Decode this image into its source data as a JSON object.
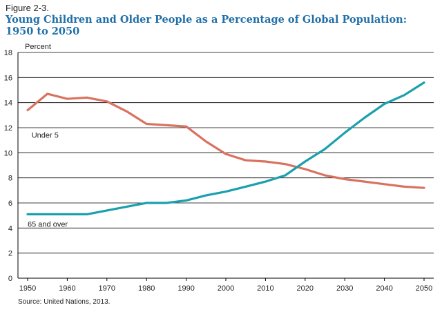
{
  "figure_label": "Figure 2-3.",
  "title_line1": "Young Children and Older People as a Percentage of Global Population:",
  "title_line2": "1950 to 2050",
  "source": "Source: United Nations, 2013.",
  "colors": {
    "title": "#1f6fa8",
    "under5": "#d9725f",
    "over65": "#1aa0ad",
    "grid": "#000000"
  },
  "chart_data": {
    "type": "line",
    "ylabel": "Percent",
    "xlabel": "",
    "ylim": [
      0,
      18
    ],
    "xlim": [
      1950,
      2050
    ],
    "yticks": [
      0,
      2,
      4,
      6,
      8,
      10,
      12,
      14,
      16,
      18
    ],
    "xticks": [
      1950,
      1960,
      1970,
      1980,
      1990,
      2000,
      2010,
      2020,
      2030,
      2040,
      2050
    ],
    "grid": "horizontal",
    "x": [
      1950,
      1955,
      1960,
      1965,
      1970,
      1975,
      1980,
      1985,
      1990,
      1995,
      2000,
      2005,
      2010,
      2015,
      2020,
      2025,
      2030,
      2035,
      2040,
      2045,
      2050
    ],
    "series": [
      {
        "name": "Under 5",
        "color": "#d9725f",
        "values": [
          13.4,
          14.7,
          14.3,
          14.4,
          14.1,
          13.3,
          12.3,
          12.2,
          12.1,
          10.9,
          9.9,
          9.4,
          9.3,
          9.1,
          8.7,
          8.2,
          7.9,
          7.7,
          7.5,
          7.3,
          7.2
        ]
      },
      {
        "name": "65 and over",
        "color": "#1aa0ad",
        "values": [
          5.1,
          5.1,
          5.1,
          5.1,
          5.4,
          5.7,
          6.0,
          6.0,
          6.2,
          6.6,
          6.9,
          7.3,
          7.7,
          8.2,
          9.3,
          10.3,
          11.6,
          12.8,
          13.9,
          14.6,
          15.6
        ]
      }
    ]
  }
}
